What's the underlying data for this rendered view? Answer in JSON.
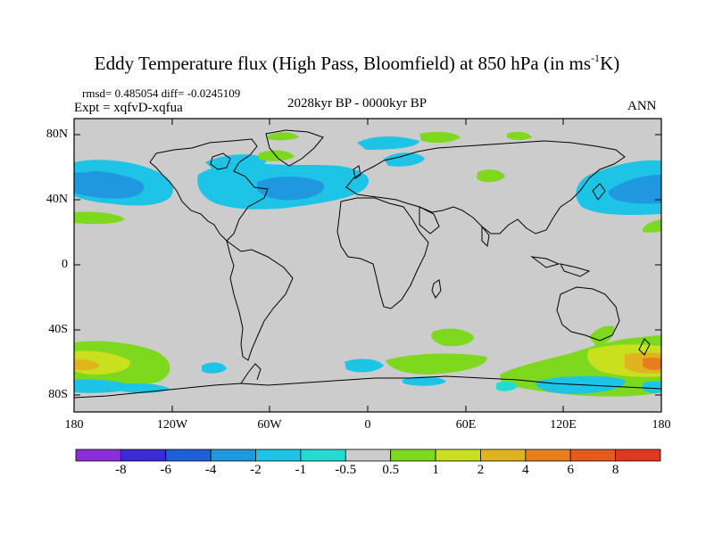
{
  "title": {
    "main": "Eddy Temperature flux (High Pass, Bloomfield) at 850 hPa (in ms",
    "sup": "-1",
    "end": "K)"
  },
  "stats": "rmsd= 0.485054 diff= -0.0245109",
  "experiment": "Expt = xqfvD-xqfua",
  "period": "2028kyr BP - 0000kyr BP",
  "season": "ANN",
  "lat_labels": [
    "80N",
    "40N",
    "0",
    "40S",
    "80S"
  ],
  "lon_labels": [
    "180",
    "120W",
    "60W",
    "0",
    "60E",
    "120E",
    "180"
  ],
  "colorbar": {
    "labels": [
      "-8",
      "-6",
      "-4",
      "-2",
      "-1",
      "-0.5",
      "0.5",
      "1",
      "2",
      "4",
      "6",
      "8"
    ],
    "colors": [
      "#8e2ed8",
      "#3a2ad8",
      "#1f5fd8",
      "#1f98e0",
      "#1ec4e6",
      "#22dcd0",
      "#cccccc",
      "#7ed81e",
      "#c8e01e",
      "#e0b41e",
      "#e67e1e",
      "#e65a1e",
      "#e0381e"
    ]
  }
}
